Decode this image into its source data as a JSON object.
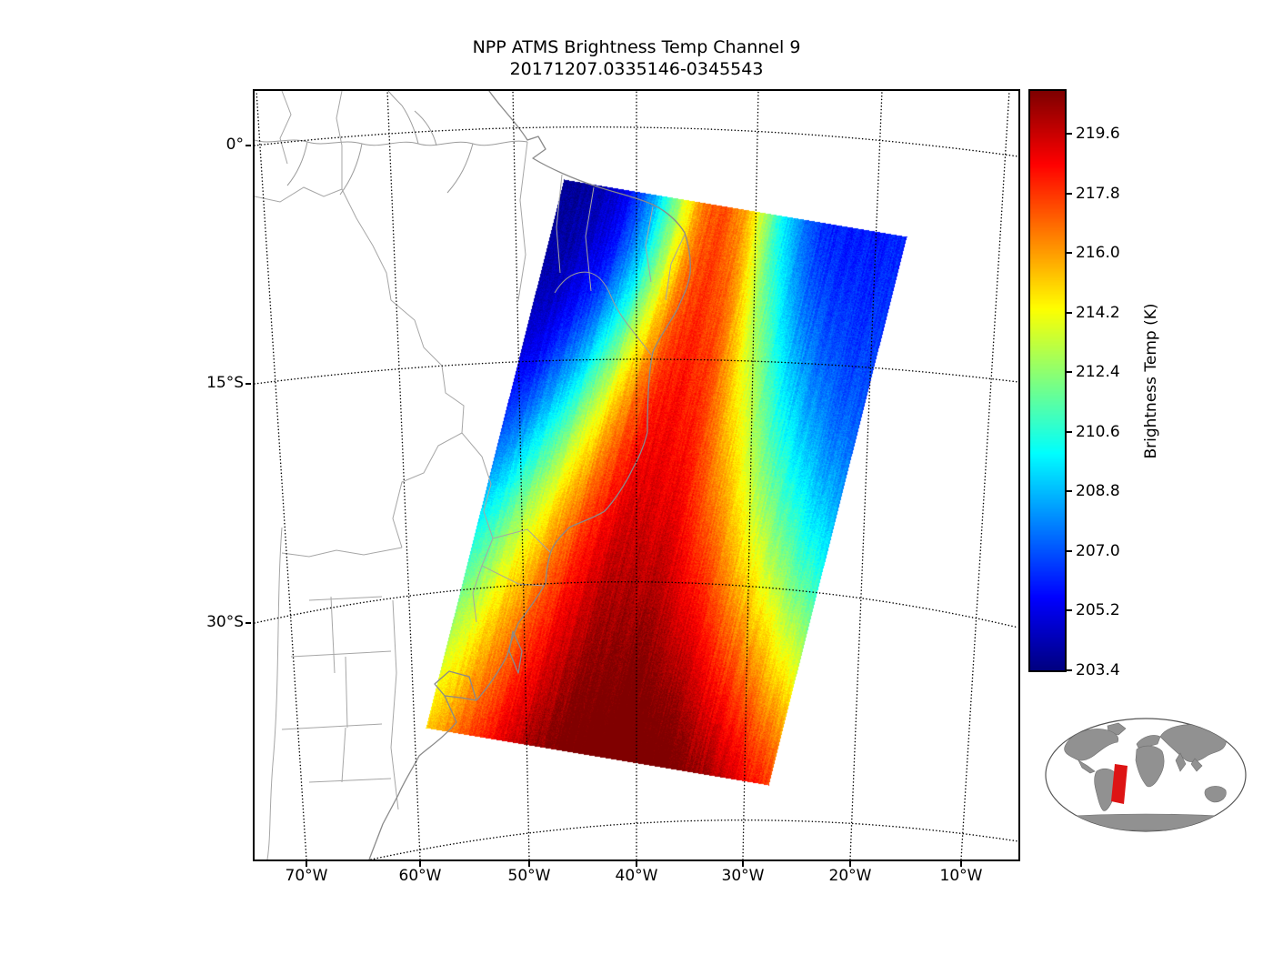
{
  "figure": {
    "title": "NPP ATMS Brightness Temp Channel 9",
    "subtitle": "20171207.0335146-0345543"
  },
  "axes": {
    "lat_tick_labels": [
      "0°",
      "15°S",
      "30°S"
    ],
    "lon_tick_labels": [
      "70°W",
      "60°W",
      "50°W",
      "40°W",
      "30°W",
      "20°W",
      "10°W"
    ]
  },
  "colorbar": {
    "label": "Brightness Temp (K)",
    "tick_labels": [
      "219.6",
      "217.8",
      "216.0",
      "214.2",
      "212.4",
      "210.6",
      "208.8",
      "207.0",
      "205.2",
      "203.4"
    ],
    "min": 203.4,
    "max": 220.9,
    "colormap": "jet"
  },
  "chart_data": {
    "type": "heatmap",
    "title": "NPP ATMS Brightness Temp Channel 9",
    "subtitle": "20171207.0335146-0345543",
    "value_label": "Brightness Temp (K)",
    "value_range": [
      203.4,
      220.9
    ],
    "colorbar_ticks": [
      219.6,
      217.8,
      216.0,
      214.2,
      212.4,
      210.6,
      208.8,
      207.0,
      205.2,
      203.4
    ],
    "x_ticks": [
      "70°W",
      "60°W",
      "50°W",
      "40°W",
      "30°W",
      "20°W",
      "10°W"
    ],
    "y_ticks": [
      "0°",
      "15°S",
      "30°S"
    ],
    "legend_position": "right"
  },
  "inset": {
    "swath_highlight_color": "#dd1414",
    "land_color": "#919191"
  }
}
